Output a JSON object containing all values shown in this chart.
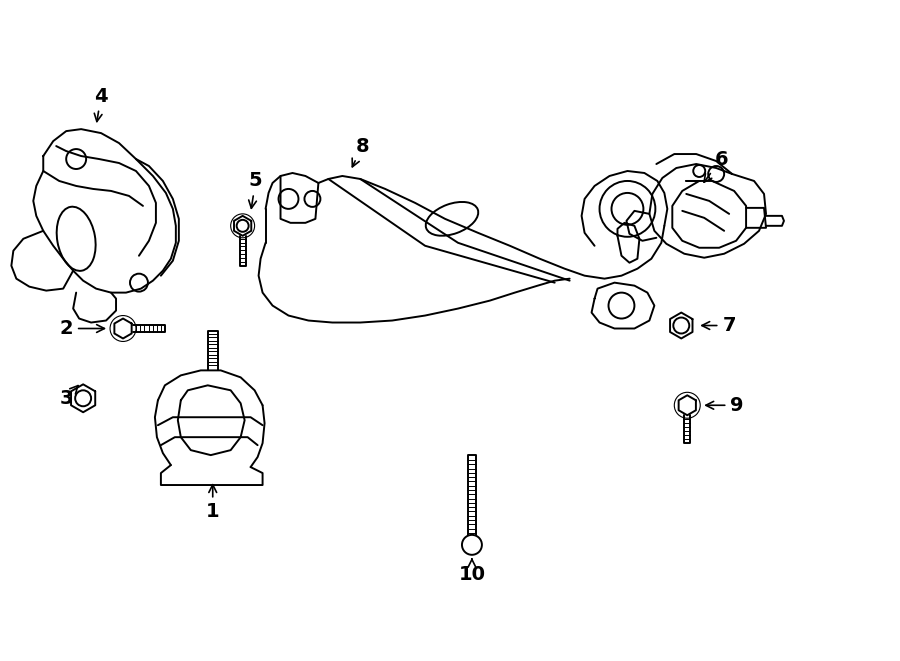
{
  "background_color": "#ffffff",
  "line_color": "#000000",
  "line_width": 1.4,
  "label_fontsize": 14,
  "fig_width": 9.0,
  "fig_height": 6.61,
  "dpi": 100
}
